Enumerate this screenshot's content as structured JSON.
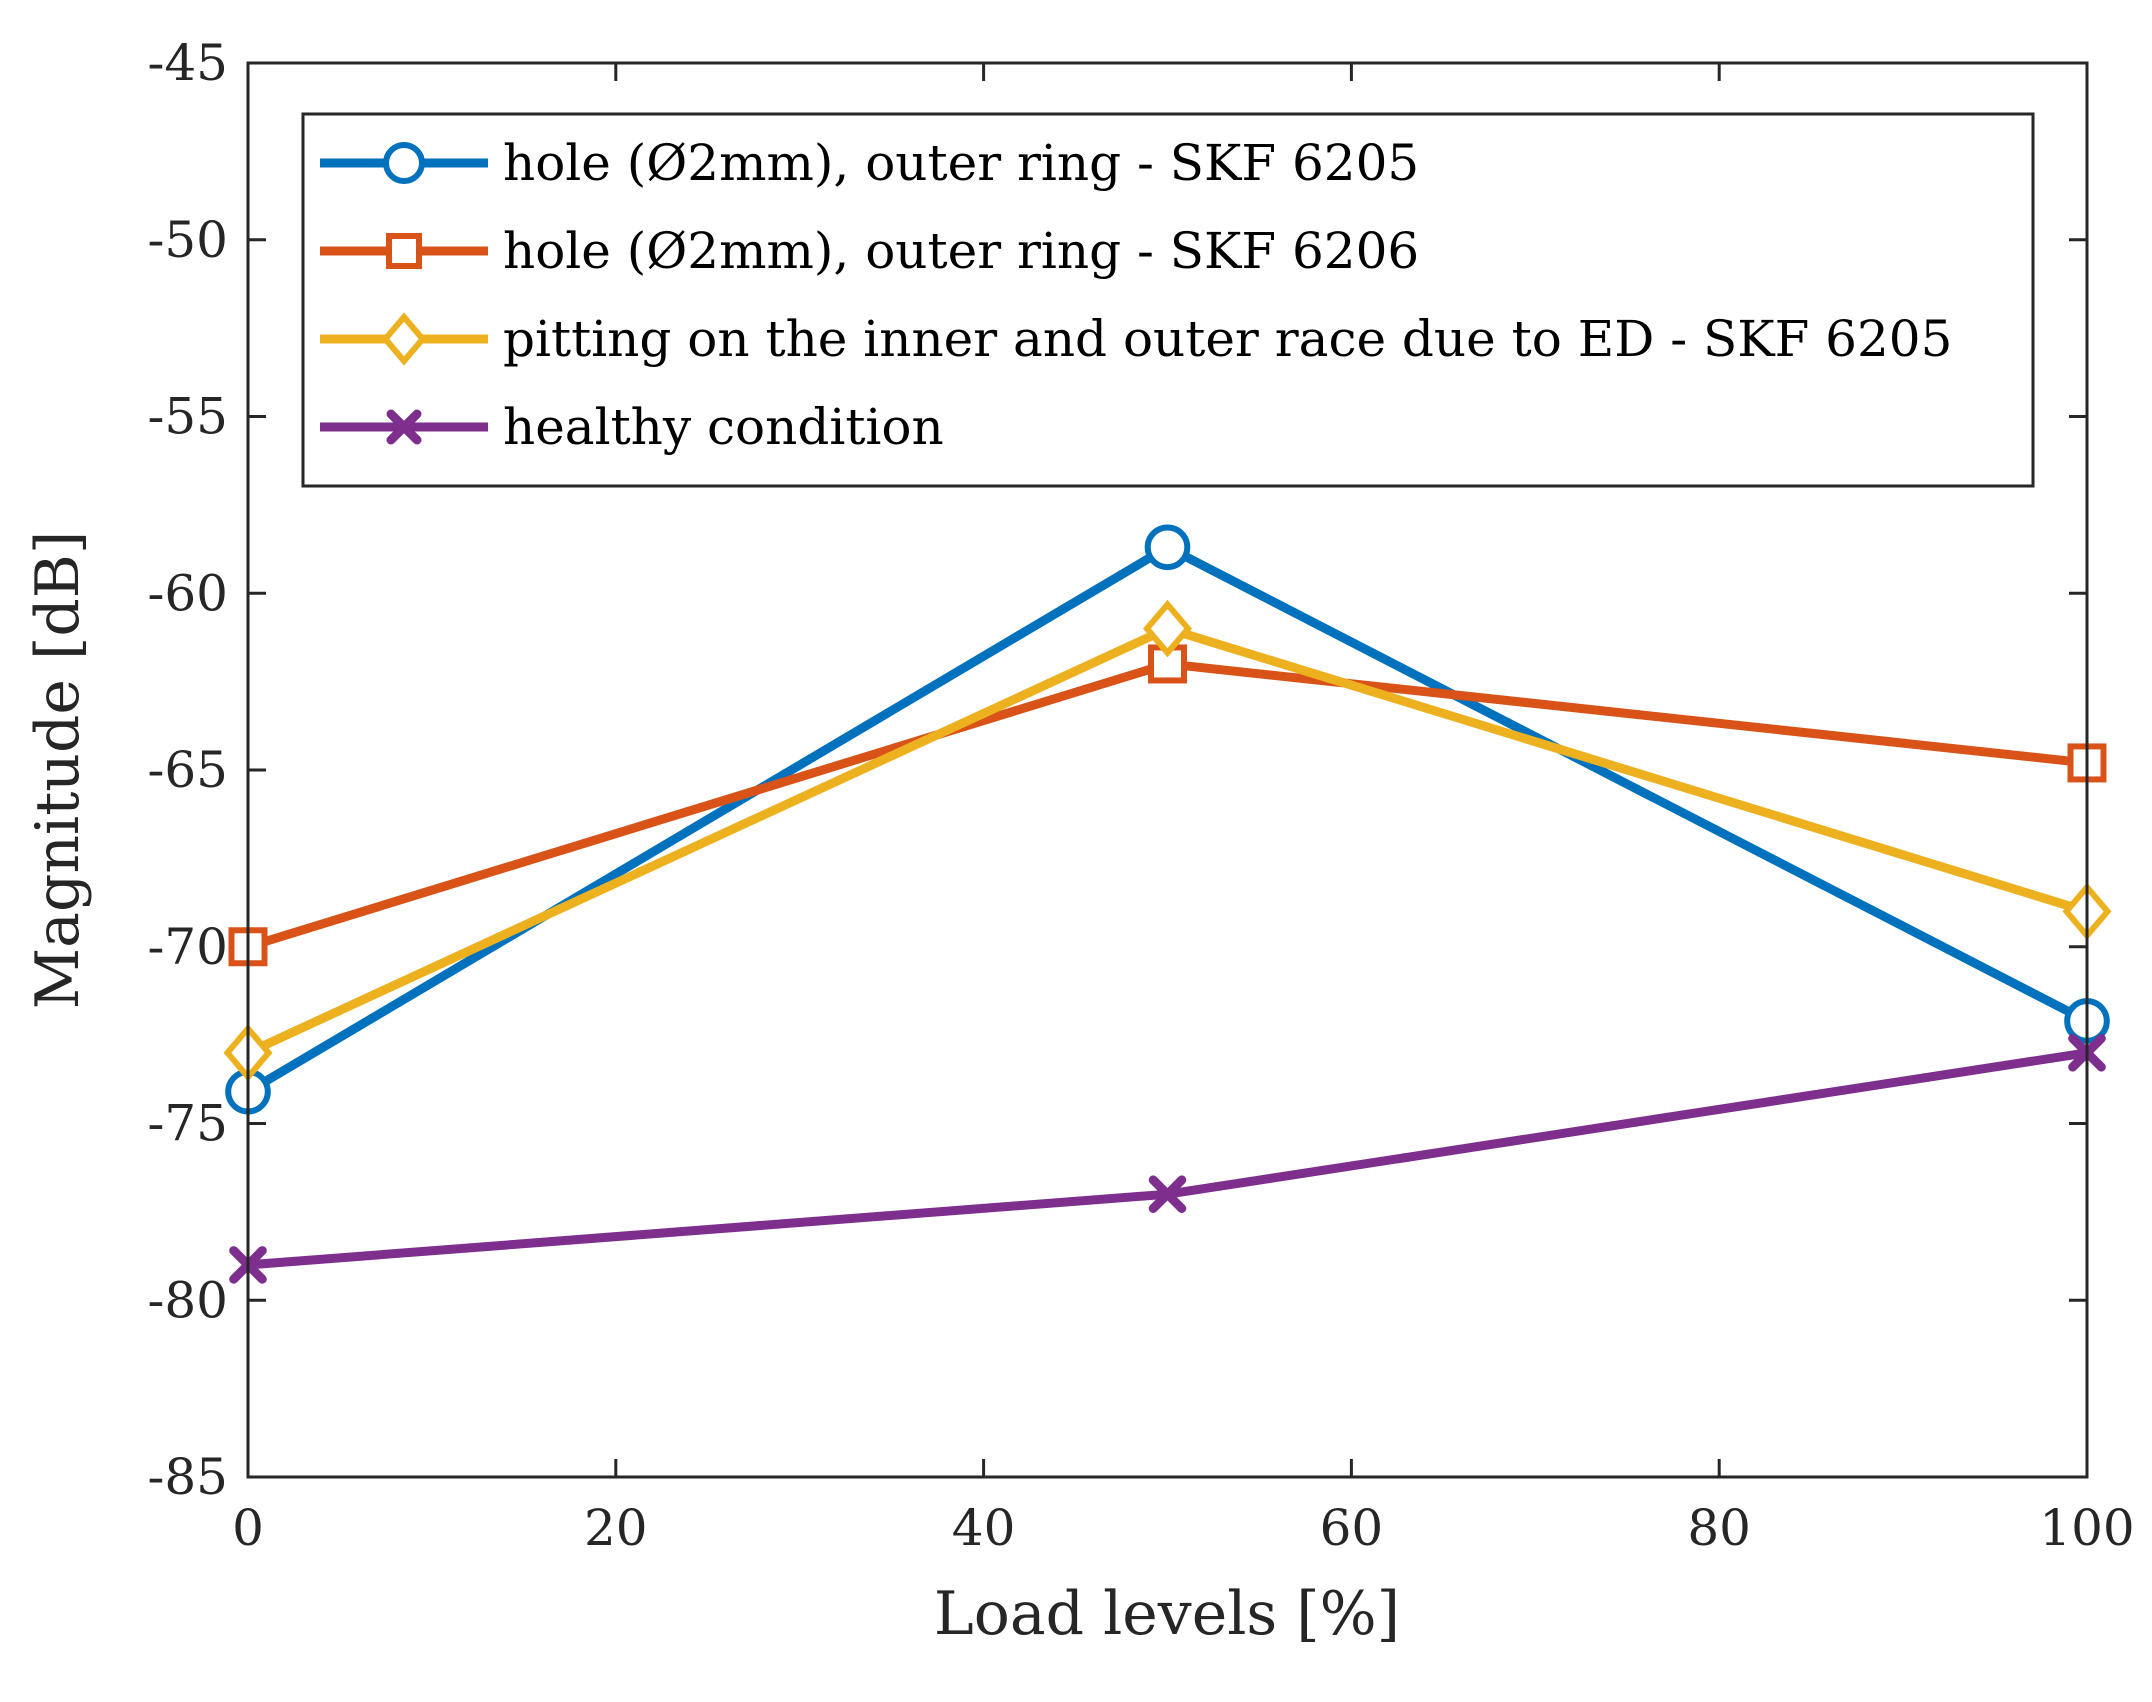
{
  "chart_data": {
    "type": "line",
    "title": "",
    "xlabel": "Load levels [%]",
    "ylabel": "Magnitude [dB]",
    "xlim": [
      0,
      100
    ],
    "ylim": [
      -85,
      -45
    ],
    "xticks": [
      0,
      20,
      40,
      60,
      80,
      100
    ],
    "yticks": [
      -45,
      -50,
      -55,
      -60,
      -65,
      -70,
      -75,
      -80,
      -85
    ],
    "x": [
      0,
      50,
      100
    ],
    "legend_position": "top-right",
    "series": [
      {
        "name": "hole (Ø2mm), outer ring - SKF 6205",
        "marker": "circle",
        "color": "#0072BD",
        "values": [
          -74.1,
          -58.7,
          -72.1
        ]
      },
      {
        "name": "hole (Ø2mm), outer ring - SKF 6206",
        "marker": "square",
        "color": "#D95319",
        "values": [
          -70.0,
          -62.0,
          -64.8
        ]
      },
      {
        "name": "pitting on the inner and outer race due to ED - SKF 6205",
        "marker": "diamond",
        "color": "#EDB120",
        "values": [
          -73.0,
          -61.0,
          -69.0
        ]
      },
      {
        "name": "healthy condition",
        "marker": "x",
        "color": "#7E2F8E",
        "values": [
          -79.0,
          -77.0,
          -73.0
        ]
      }
    ]
  }
}
